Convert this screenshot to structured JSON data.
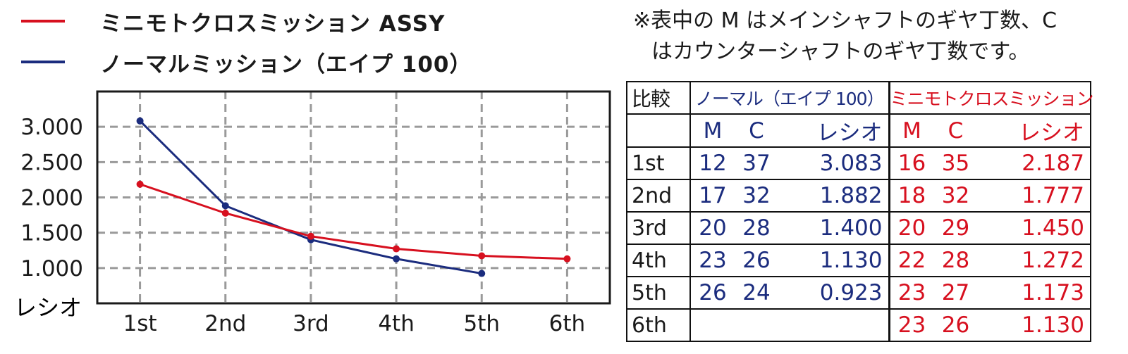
{
  "colors": {
    "cross": "#d7101f",
    "normal": "#1b2c7e",
    "grid": "#9a9a9a",
    "frame": "#1a1a1a"
  },
  "legend": [
    {
      "series": "cross",
      "label": "ミニモトクロスミッション ASSY"
    },
    {
      "series": "normal",
      "label": "ノーマルミッション（エイプ 100）"
    }
  ],
  "note": {
    "line1": "※表中の M はメインシャフトのギヤ丁数、C",
    "line2": "はカウンターシャフトのギヤ丁数です。"
  },
  "chart_data": {
    "type": "line",
    "categories": [
      "1st",
      "2nd",
      "3rd",
      "4th",
      "5th",
      "6th"
    ],
    "ylabel": "レシオ",
    "ylim": [
      0.5,
      3.5
    ],
    "yticks": [
      1.0,
      1.5,
      2.0,
      2.5,
      3.0
    ],
    "ytick_labels": [
      "1.000",
      "1.500",
      "2.000",
      "2.500",
      "3.000"
    ],
    "grid": true,
    "legend_position": "top-left",
    "series": [
      {
        "key": "normal",
        "name": "ノーマルミッション（エイプ 100）",
        "values": [
          3.083,
          1.882,
          1.4,
          1.13,
          0.923,
          null
        ]
      },
      {
        "key": "cross",
        "name": "ミニモトクロスミッション ASSY",
        "values": [
          2.187,
          1.777,
          1.45,
          1.272,
          1.173,
          1.13
        ]
      }
    ]
  },
  "table": {
    "header_compare": "比較",
    "header_normal": "ノーマル（エイプ 100）",
    "header_cross": "ミニモトクロスミッション",
    "col_m": "M",
    "col_c": "C",
    "col_ratio": "レシオ",
    "rows": [
      {
        "gear": "1st",
        "normal": {
          "m": "12",
          "c": "37",
          "ratio": "3.083"
        },
        "cross": {
          "m": "16",
          "c": "35",
          "ratio": "2.187"
        }
      },
      {
        "gear": "2nd",
        "normal": {
          "m": "17",
          "c": "32",
          "ratio": "1.882"
        },
        "cross": {
          "m": "18",
          "c": "32",
          "ratio": "1.777"
        }
      },
      {
        "gear": "3rd",
        "normal": {
          "m": "20",
          "c": "28",
          "ratio": "1.400"
        },
        "cross": {
          "m": "20",
          "c": "29",
          "ratio": "1.450"
        }
      },
      {
        "gear": "4th",
        "normal": {
          "m": "23",
          "c": "26",
          "ratio": "1.130"
        },
        "cross": {
          "m": "22",
          "c": "28",
          "ratio": "1.272"
        }
      },
      {
        "gear": "5th",
        "normal": {
          "m": "26",
          "c": "24",
          "ratio": "0.923"
        },
        "cross": {
          "m": "23",
          "c": "27",
          "ratio": "1.173"
        }
      },
      {
        "gear": "6th",
        "normal": {
          "m": "",
          "c": "",
          "ratio": ""
        },
        "cross": {
          "m": "23",
          "c": "26",
          "ratio": "1.130"
        }
      }
    ]
  }
}
